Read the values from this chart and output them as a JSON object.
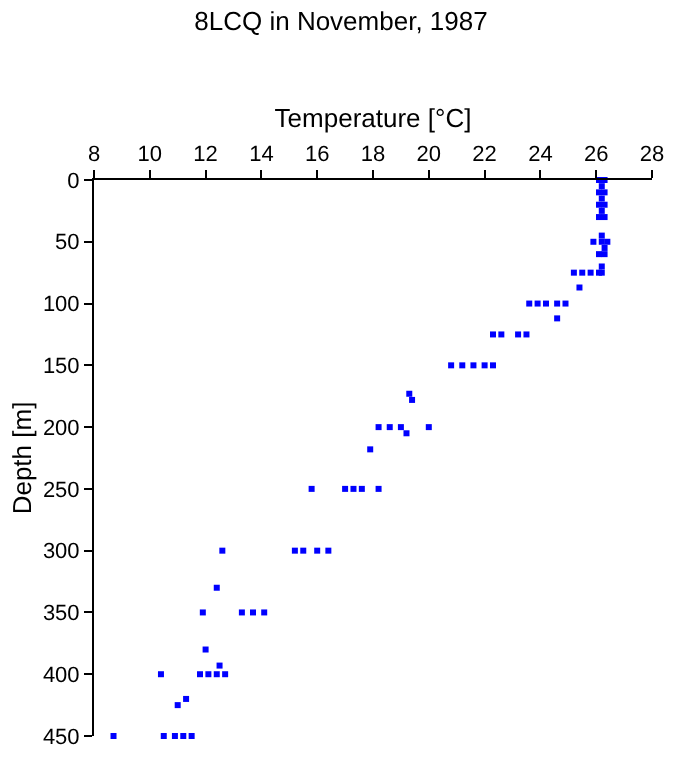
{
  "chart_data": {
    "type": "scatter",
    "title": "8LCQ in November, 1987",
    "xlabel": "Temperature [°C]",
    "ylabel": "Depth [m]",
    "marker": "square",
    "xlim": [
      8,
      28
    ],
    "xticks": [
      8,
      10,
      12,
      14,
      16,
      18,
      20,
      22,
      24,
      26,
      28
    ],
    "ylim": [
      450,
      0
    ],
    "yticks": [
      0,
      50,
      100,
      150,
      200,
      250,
      300,
      350,
      400,
      450
    ],
    "series": [
      {
        "color": "#0000ff",
        "x": [
          26.1,
          26.3,
          26.2,
          26.1,
          26.3,
          26.2,
          26.1,
          26.3,
          26.2,
          26.1,
          26.3,
          26.2,
          25.9,
          26.2,
          26.4,
          26.3,
          26.1,
          26.3,
          26.2,
          26.2,
          25.2,
          25.5,
          25.8,
          26.1,
          25.4,
          23.6,
          23.9,
          24.2,
          24.6,
          24.9,
          24.6,
          22.3,
          22.6,
          23.2,
          23.5,
          20.8,
          21.2,
          21.6,
          22.0,
          22.3,
          19.3,
          19.4,
          18.2,
          18.6,
          19.0,
          19.2,
          20.0,
          17.9,
          15.8,
          17.0,
          17.3,
          17.6,
          18.2,
          12.6,
          15.2,
          15.5,
          16.0,
          16.4,
          12.4,
          11.9,
          13.3,
          13.7,
          14.1,
          12.0,
          12.5,
          10.4,
          11.8,
          12.1,
          12.4,
          12.7,
          11.3,
          11.0,
          8.7,
          10.5,
          10.9,
          11.2,
          11.5
        ],
        "values": [
          0,
          0,
          5,
          10,
          10,
          15,
          20,
          20,
          25,
          30,
          30,
          45,
          50,
          50,
          50,
          55,
          60,
          60,
          70,
          75,
          75,
          75,
          75,
          75,
          87,
          100,
          100,
          100,
          100,
          100,
          112,
          125,
          125,
          125,
          125,
          150,
          150,
          150,
          150,
          150,
          173,
          178,
          200,
          200,
          200,
          205,
          200,
          218,
          250,
          250,
          250,
          250,
          250,
          300,
          300,
          300,
          300,
          300,
          330,
          350,
          350,
          350,
          350,
          380,
          393,
          400,
          400,
          400,
          400,
          400,
          420,
          425,
          450,
          450,
          450,
          450,
          450
        ]
      }
    ]
  }
}
